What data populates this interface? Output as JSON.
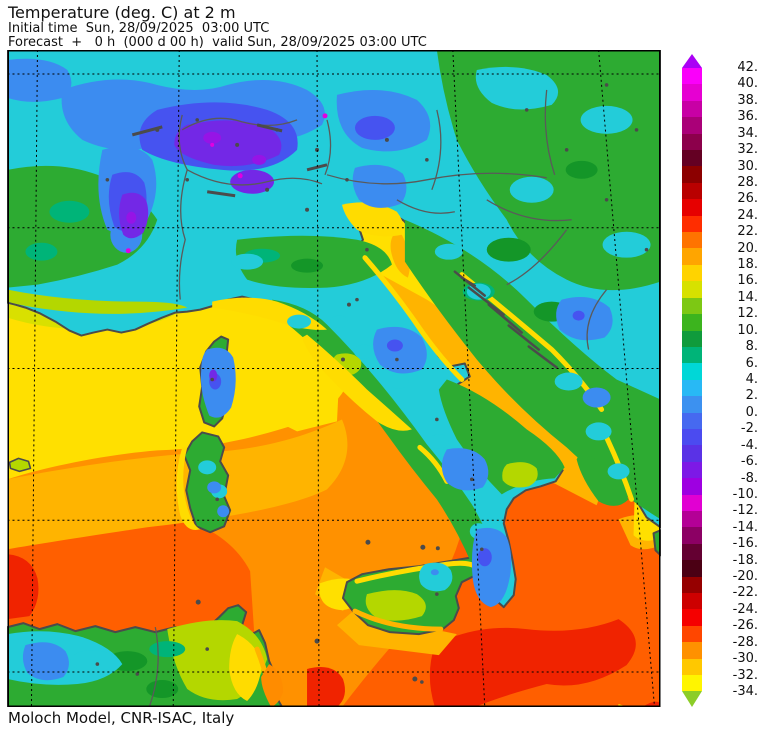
{
  "header": {
    "title": "Temperature (deg. C) at 2 m",
    "initial_time_line": "Initial time  Sun, 28/09/2025  03:00 UTC",
    "forecast_line": "Forecast  +   0 h  (000 d 00 h)  valid Sun, 28/09/2025 03:00 UTC"
  },
  "footer": {
    "credit": "Moloch Model, CNR-ISAC, Italy"
  },
  "colorbar": {
    "unit": "deg C",
    "arrow_up_color": "#aa00f5",
    "arrow_down_color": "#8ccd28",
    "stops": [
      {
        "label": "42.",
        "color": "#fa00fa"
      },
      {
        "label": "40.",
        "color": "#e600d2"
      },
      {
        "label": "38.",
        "color": "#c800a5"
      },
      {
        "label": "36.",
        "color": "#aa0078"
      },
      {
        "label": "34.",
        "color": "#8c004b"
      },
      {
        "label": "32.",
        "color": "#640023"
      },
      {
        "label": "30.",
        "color": "#8c0000"
      },
      {
        "label": "28.",
        "color": "#b90000"
      },
      {
        "label": "26.",
        "color": "#e60000"
      },
      {
        "label": "24.",
        "color": "#ff2d00"
      },
      {
        "label": "22.",
        "color": "#ff7300"
      },
      {
        "label": "20.",
        "color": "#ffa500"
      },
      {
        "label": "18.",
        "color": "#ffd300"
      },
      {
        "label": "16.",
        "color": "#d7e100"
      },
      {
        "label": "14.",
        "color": "#7dc814"
      },
      {
        "label": "12.",
        "color": "#3cb41e"
      },
      {
        "label": "10.",
        "color": "#109b3c"
      },
      {
        "label": "8.",
        "color": "#00b478"
      },
      {
        "label": "6.",
        "color": "#00d7d7"
      },
      {
        "label": "4.",
        "color": "#28b9f5"
      },
      {
        "label": "2.",
        "color": "#3c91f0"
      },
      {
        "label": "0.",
        "color": "#4669f0"
      },
      {
        "label": "-2.",
        "color": "#4b4bf0"
      },
      {
        "label": "-4.",
        "color": "#5a32e6"
      },
      {
        "label": "-6.",
        "color": "#7d19e6"
      },
      {
        "label": "-8.",
        "color": "#9e00e1"
      },
      {
        "label": "-10.",
        "color": "#e100d2"
      },
      {
        "label": "-12.",
        "color": "#b40096"
      },
      {
        "label": "-14.",
        "color": "#8c0064"
      },
      {
        "label": "-16.",
        "color": "#640032"
      },
      {
        "label": "-18.",
        "color": "#4b0014"
      },
      {
        "label": "-20.",
        "color": "#960000"
      },
      {
        "label": "-22.",
        "color": "#cd0000"
      },
      {
        "label": "-24.",
        "color": "#f50000"
      },
      {
        "label": "-26.",
        "color": "#ff4600"
      },
      {
        "label": "-28.",
        "color": "#ff9100"
      },
      {
        "label": "-30.",
        "color": "#ffc800"
      },
      {
        "label": "-32.",
        "color": "#fff500"
      },
      {
        "label": "-34.",
        "color": null
      }
    ]
  },
  "map": {
    "colors": {
      "sea_orange": "#ff9100",
      "sea_deep_orange": "#ff5f00",
      "sea_red": "#f02300",
      "sea_amber": "#ffb400",
      "sea_yellow": "#ffe000",
      "sea_chartreuse": "#d9e000",
      "land_cyan": "#23ccd9",
      "land_green": "#2dab32",
      "land_dark_green": "#149628",
      "land_chartreuse": "#b4d700",
      "land_yellow": "#ffdc00",
      "land_amber": "#ffb400",
      "land_orange": "#ff8c00",
      "land_teal": "#00b478",
      "sky_blue": "#3c8cf0",
      "royal_blue": "#4653f0",
      "violet": "#7328e6",
      "purple": "#9614e6",
      "magenta": "#e100e1",
      "coastline": "#4b4b4b",
      "border": "#5a5a5a",
      "graticule": "#000000",
      "frame": "#000000"
    }
  }
}
